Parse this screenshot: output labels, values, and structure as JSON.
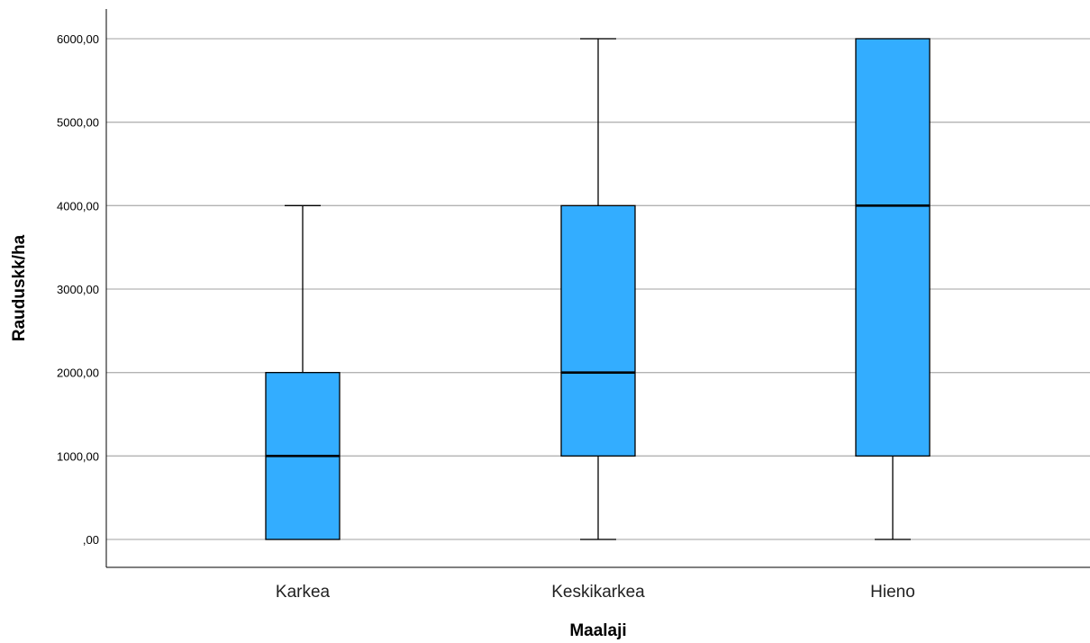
{
  "chart_data": {
    "type": "boxplot",
    "title": "",
    "xlabel": "Maalaji",
    "ylabel": "Rauduskk/ha",
    "ylim": [
      0,
      6000
    ],
    "y_ticks": [
      {
        "value": 0,
        "label": ",00"
      },
      {
        "value": 1000,
        "label": "1000,00"
      },
      {
        "value": 2000,
        "label": "2000,00"
      },
      {
        "value": 3000,
        "label": "3000,00"
      },
      {
        "value": 4000,
        "label": "4000,00"
      },
      {
        "value": 5000,
        "label": "5000,00"
      },
      {
        "value": 6000,
        "label": "6000,00"
      }
    ],
    "grid": "horizontal",
    "box_color": "#33adff",
    "categories": [
      "Karkea",
      "Keskikarkea",
      "Hieno"
    ],
    "series": [
      {
        "boxes": [
          {
            "category": "Karkea",
            "min": 0,
            "q1": 0,
            "median": 1000,
            "q3": 2000,
            "max": 4000
          },
          {
            "category": "Keskikarkea",
            "min": 0,
            "q1": 1000,
            "median": 2000,
            "q3": 4000,
            "max": 6000
          },
          {
            "category": "Hieno",
            "min": 0,
            "q1": 1000,
            "median": 4000,
            "q3": 6000,
            "max": 6000
          }
        ]
      }
    ]
  }
}
